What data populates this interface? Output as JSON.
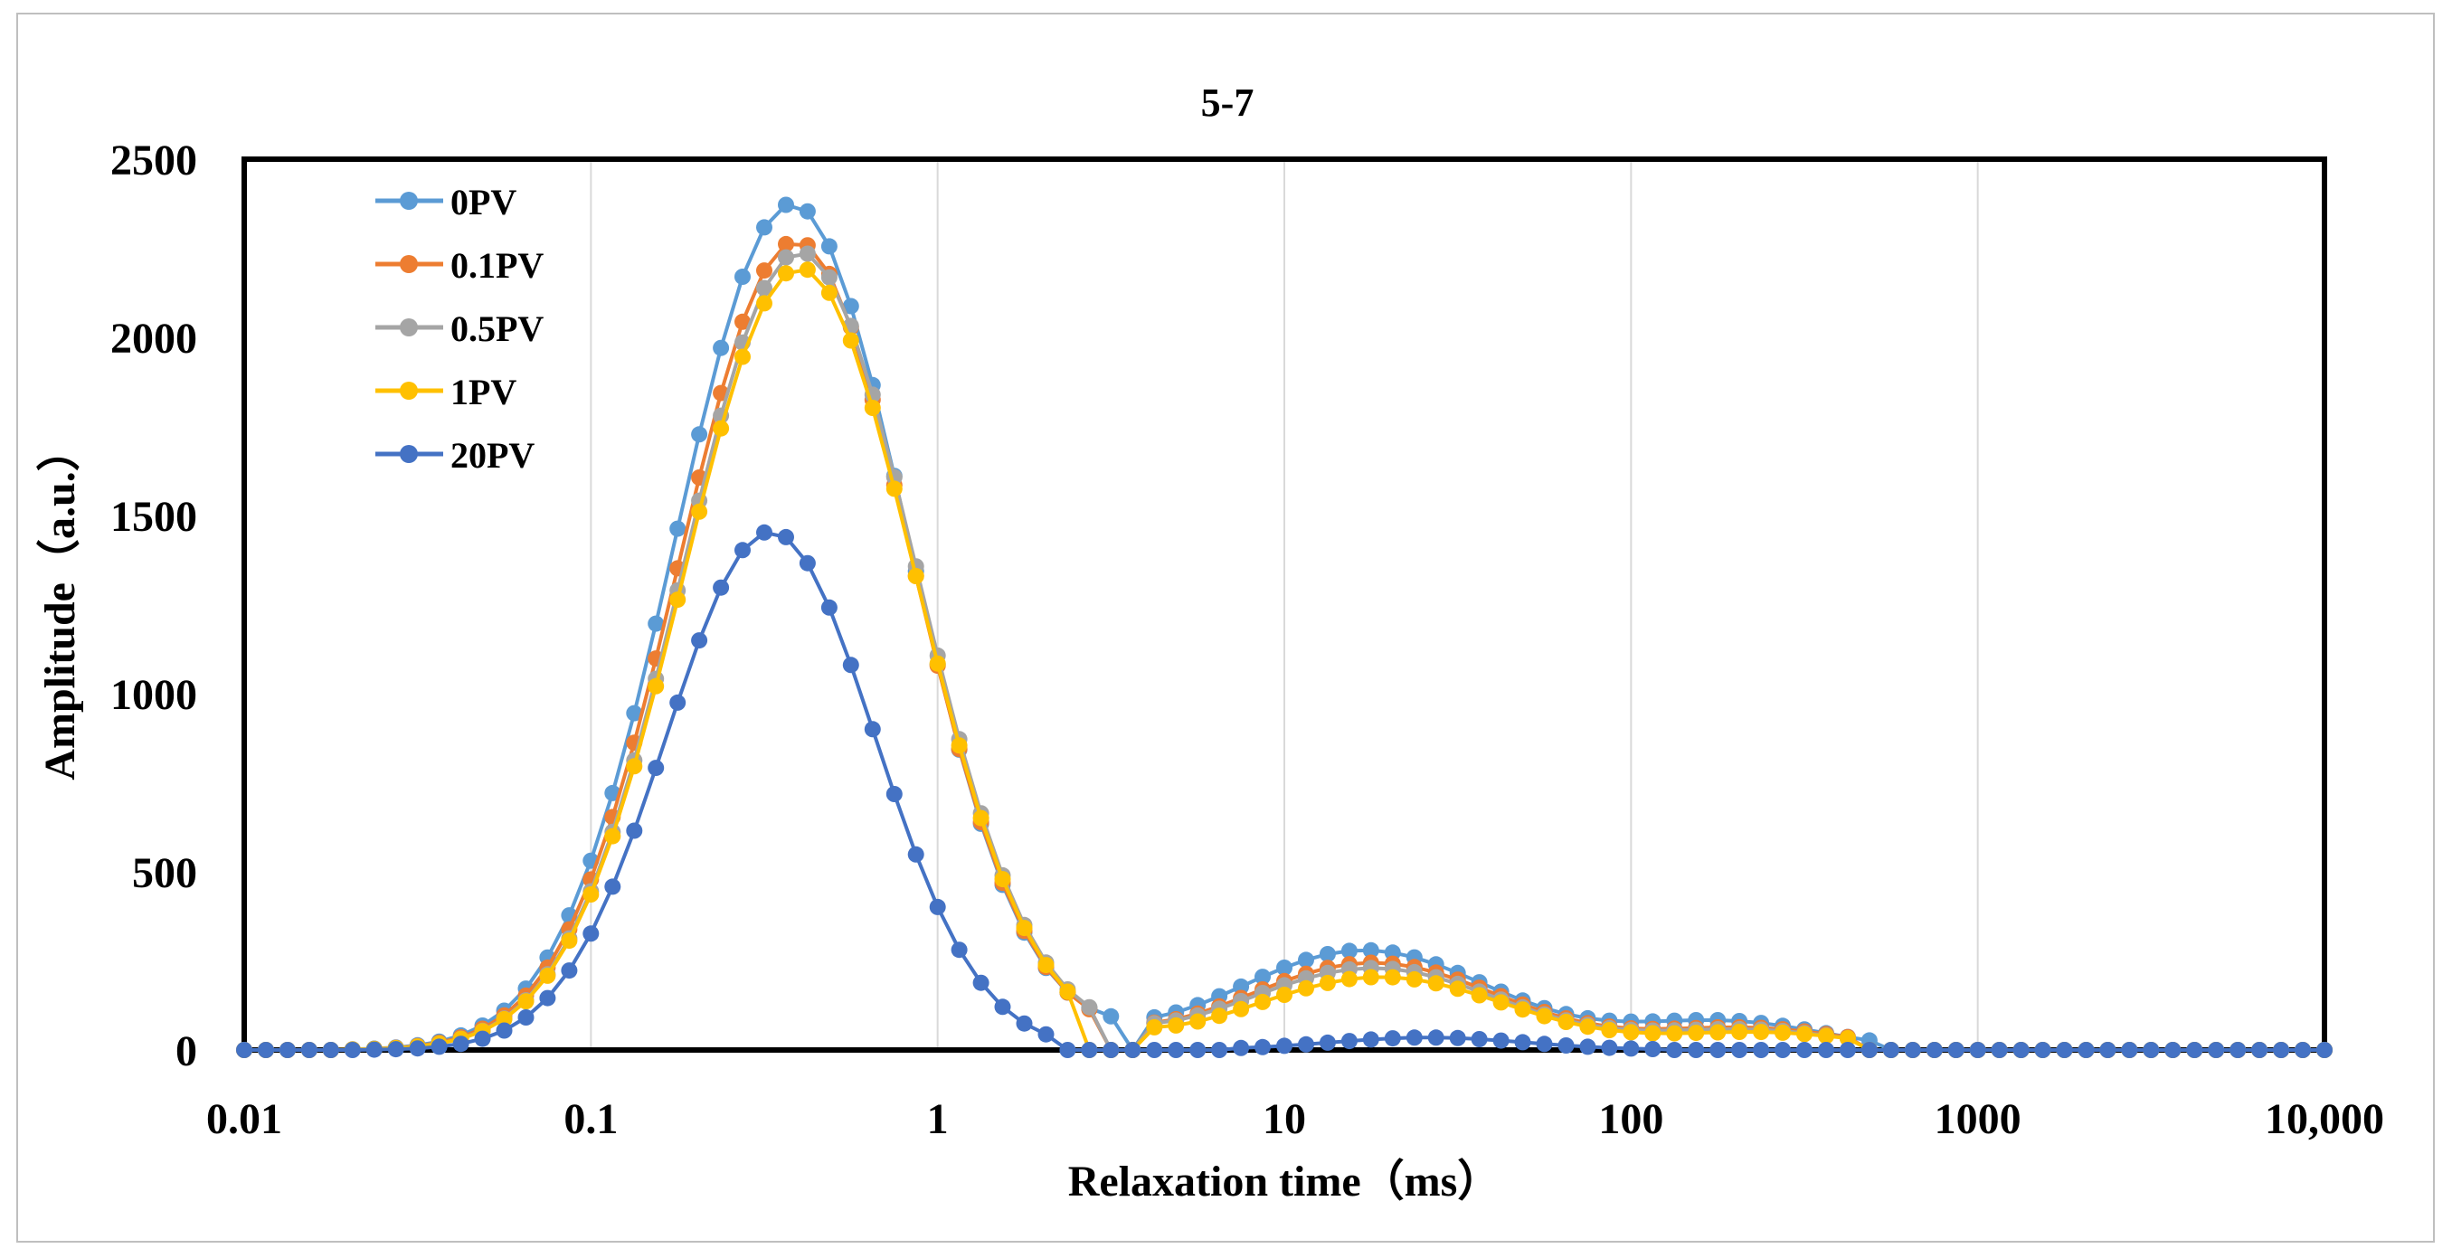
{
  "chart_data": {
    "type": "line",
    "title": "5-7",
    "xlabel": "Relaxation time（ms）",
    "ylabel": "Amplitude（a.u.）",
    "x_scale": "log",
    "xlim": [
      0.01,
      10000
    ],
    "ylim": [
      0,
      2500
    ],
    "x_ticks": [
      0.01,
      0.1,
      1,
      10,
      100,
      1000,
      10000
    ],
    "x_tick_labels": [
      "0.01",
      "0.1",
      "1",
      "10",
      "100",
      "1000",
      "10,000"
    ],
    "y_ticks": [
      0,
      500,
      1000,
      1500,
      2000,
      2500
    ],
    "y_tick_labels": [
      "0",
      "500",
      "1000",
      "1500",
      "2000",
      "2500"
    ],
    "grid": "vertical",
    "legend_position": "top-left",
    "points_per_decade": 16,
    "series": [
      {
        "name": "0PV",
        "color": "#5B9BD5",
        "peaks": [
          {
            "amp": 2375,
            "center": 0.38,
            "sigma": 0.335
          },
          {
            "amp": 280,
            "center": 17,
            "sigma": 0.37
          },
          {
            "amp": 78,
            "center": 190,
            "sigma": 0.28
          }
        ],
        "cutoff_gaps": [
          [
            3.2,
            4.2
          ]
        ],
        "x_max_nonzero": 560
      },
      {
        "name": "0.1PV",
        "color": "#ED7D31",
        "peaks": [
          {
            "amp": 2270,
            "center": 0.39,
            "sigma": 0.335
          },
          {
            "amp": 245,
            "center": 18,
            "sigma": 0.37
          },
          {
            "amp": 60,
            "center": 220,
            "sigma": 0.28
          }
        ],
        "cutoff_gaps": [
          [
            2.9,
            4.2
          ]
        ],
        "x_max_nonzero": 480
      },
      {
        "name": "0.5PV",
        "color": "#A5A5A5",
        "peaks": [
          {
            "amp": 2240,
            "center": 0.4,
            "sigma": 0.335
          },
          {
            "amp": 230,
            "center": 18,
            "sigma": 0.37
          },
          {
            "amp": 55,
            "center": 220,
            "sigma": 0.28
          }
        ],
        "cutoff_gaps": [
          [
            2.8,
            4.2
          ]
        ],
        "x_max_nonzero": 480
      },
      {
        "name": "1PV",
        "color": "#FFC000",
        "peaks": [
          {
            "amp": 2195,
            "center": 0.4,
            "sigma": 0.335
          },
          {
            "amp": 205,
            "center": 19,
            "sigma": 0.37
          },
          {
            "amp": 48,
            "center": 240,
            "sigma": 0.28
          }
        ],
        "cutoff_gaps": [
          [
            2.7,
            4.2
          ]
        ],
        "x_max_nonzero": 450
      },
      {
        "name": "20PV",
        "color": "#4472C4",
        "peaks": [
          {
            "amp": 1455,
            "center": 0.33,
            "sigma": 0.3
          },
          {
            "amp": 35,
            "center": 26,
            "sigma": 0.28
          }
        ],
        "cutoff_gaps": [
          [
            2.2,
            7
          ]
        ],
        "x_max_nonzero": 120
      }
    ]
  }
}
